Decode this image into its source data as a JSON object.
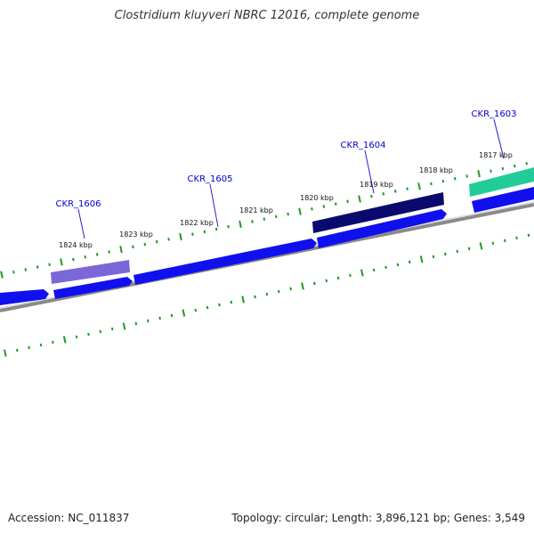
{
  "title": "Clostridium kluyveri NBRC 12016, complete genome",
  "footer": {
    "accession": "Accession: NC_011837",
    "summary": "Topology: circular; Length: 3,896,121 bp; Genes: 3,549"
  },
  "colors": {
    "tick": "#229922",
    "backbone": "#8a8a8a",
    "gene_blue": "#1010ee",
    "label_line": "#2222cc",
    "label_text": "#0000cc"
  },
  "scale_labels": [
    "1824 kbp",
    "1823 kbp",
    "1822 kbp",
    "1821 kbp",
    "1820 kbp",
    "1819 kbp",
    "1818 kbp",
    "1817 kbp"
  ],
  "highlighted_genes": [
    {
      "label": "CKR_1606",
      "color": "#7a68d8"
    },
    {
      "label": "CKR_1605",
      "color": "#1010ee"
    },
    {
      "label": "CKR_1604",
      "color": "#0a0a6e"
    },
    {
      "label": "CKR_1603",
      "color": "#22cc99"
    }
  ]
}
